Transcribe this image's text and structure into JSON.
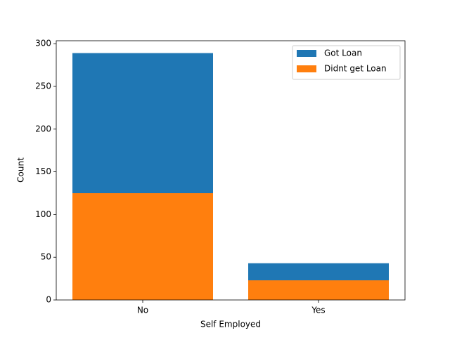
{
  "chart_data": {
    "type": "bar",
    "mode": "overlap",
    "x_label": "Self Employed",
    "y_label": "Count",
    "categories": [
      "No",
      "Yes"
    ],
    "series": [
      {
        "name": "Got Loan",
        "color": "#1f77b4",
        "values": [
          289,
          43
        ]
      },
      {
        "name": "Didnt get Loan",
        "color": "#ff7f0e",
        "values": [
          125,
          23
        ]
      }
    ],
    "ylim": [
      0,
      303.45
    ],
    "yticks": [
      0,
      50,
      100,
      150,
      200,
      250,
      300
    ],
    "legend": "upper right"
  }
}
